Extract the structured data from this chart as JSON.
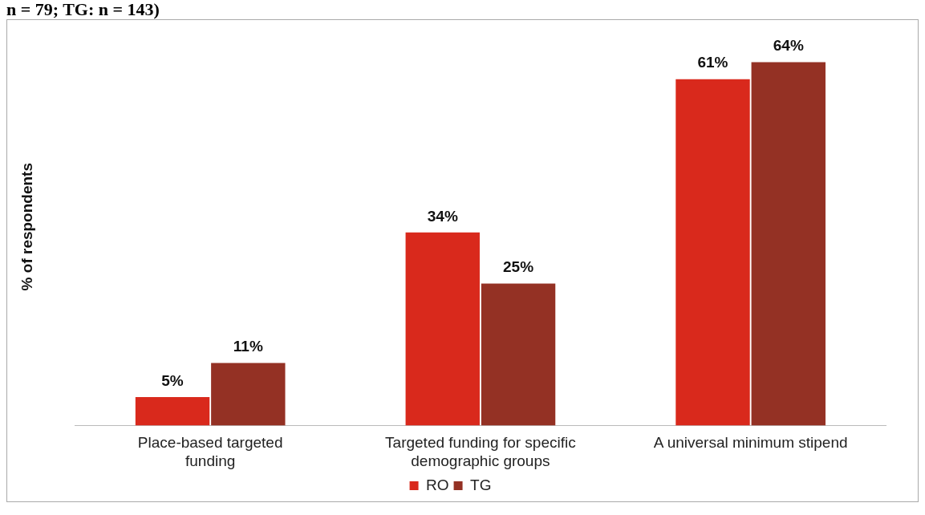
{
  "chart_data": {
    "type": "bar",
    "title": "n = 79; TG: n = 143)",
    "ylabel": "% of respondents",
    "categories": [
      "Place-based targeted funding",
      "Targeted funding for specific demographic groups",
      "A universal minimum stipend"
    ],
    "series": [
      {
        "name": "RO",
        "color": "#d9291c",
        "values": [
          5,
          34,
          61
        ],
        "value_labels": [
          "5%",
          "34%",
          "61%"
        ]
      },
      {
        "name": "TG",
        "color": "#943124",
        "values": [
          11,
          25,
          64
        ],
        "value_labels": [
          "11%",
          "25%",
          "64%"
        ]
      }
    ],
    "tick_labels": "x",
    "grid": false,
    "legend": "bottom"
  }
}
